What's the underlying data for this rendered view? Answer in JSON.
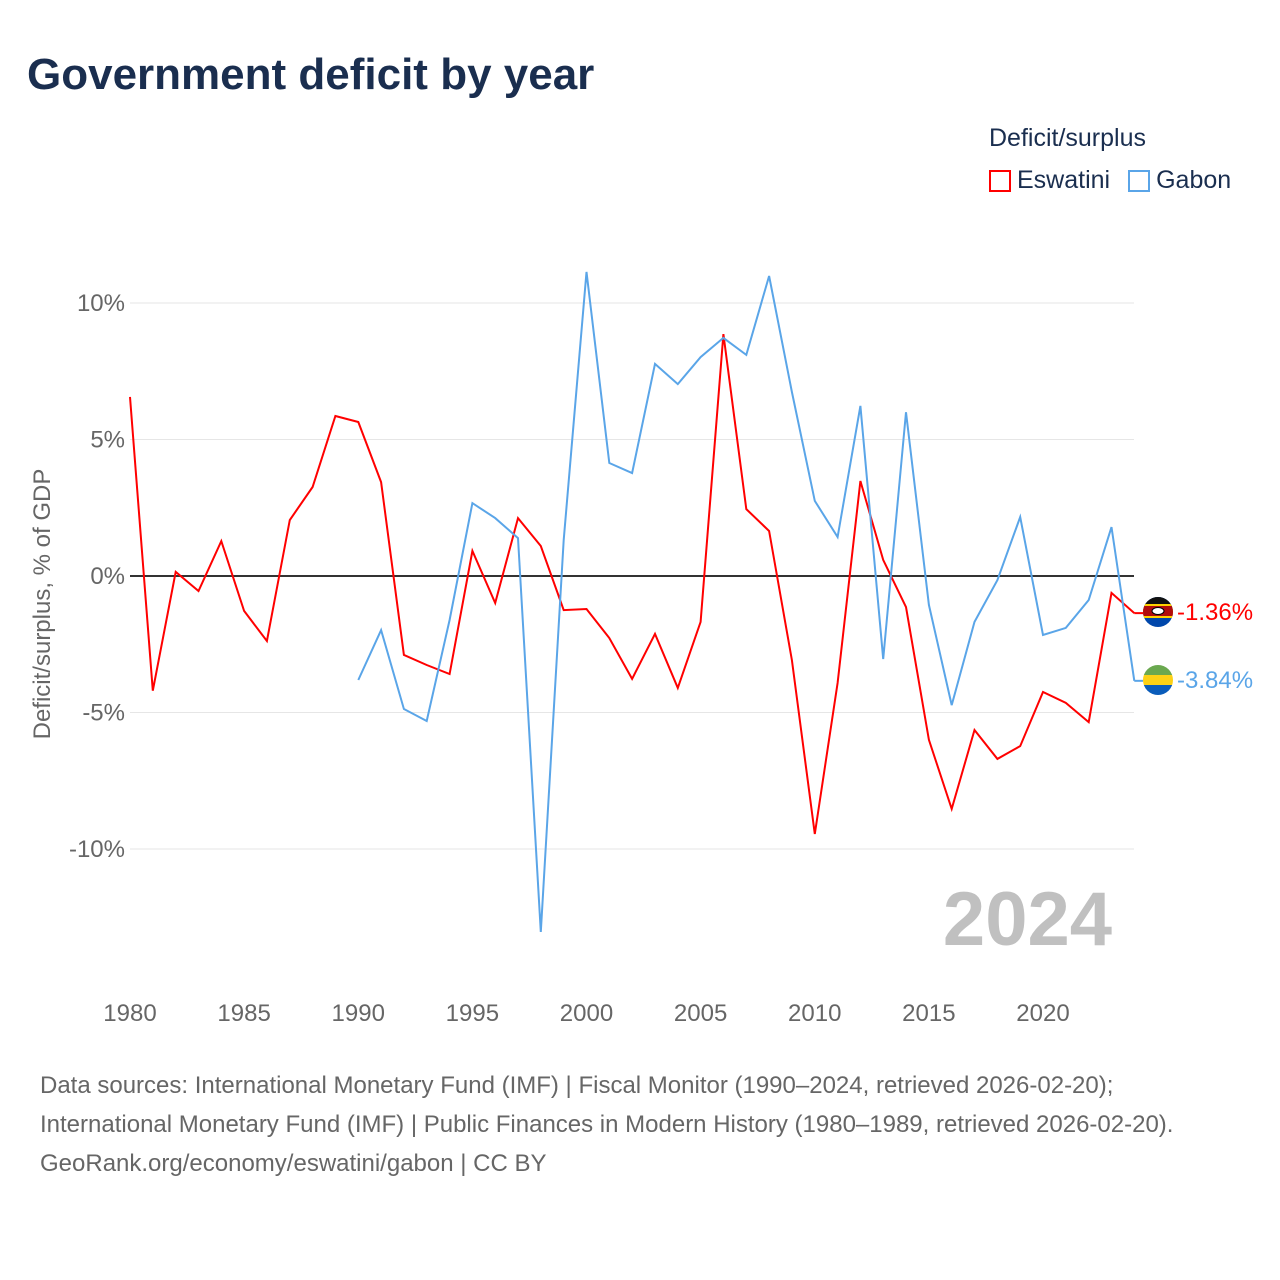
{
  "title": "Government deficit by year",
  "legend": {
    "title": "Deficit/surplus",
    "items": [
      {
        "label": "Eswatini",
        "color": "#ff0000"
      },
      {
        "label": "Gabon",
        "color": "#5aa5e8"
      }
    ]
  },
  "year_watermark": "2024",
  "source": {
    "line1": "Data sources: International Monetary Fund (IMF) | Fiscal Monitor (1990–2024, retrieved 2026-02-20);",
    "line2": "International Monetary Fund (IMF) | Public Finances in Modern History (1980–1989, retrieved 2026-02-20).",
    "line3": "GeoRank.org/economy/eswatini/gabon | CC BY"
  },
  "chart_data": {
    "type": "line",
    "title": "Government deficit by year",
    "xlabel": "",
    "ylabel": "Deficit/surplus, % of GDP",
    "xlim": [
      1980,
      2024
    ],
    "ylim": [
      -14,
      11.5
    ],
    "x_ticks": [
      1980,
      1985,
      1990,
      1995,
      2000,
      2005,
      2010,
      2015,
      2020
    ],
    "x_tick_labels": [
      "1980",
      "1985",
      "1990",
      "1995",
      "2000",
      "2005",
      "2010",
      "2015",
      "2020"
    ],
    "y_ticks": [
      10,
      5,
      0,
      -5,
      -10
    ],
    "y_tick_labels": [
      "10%",
      "5%",
      "0%",
      "-5%",
      "-10%"
    ],
    "grid": true,
    "legend_position": "top-right",
    "series": [
      {
        "name": "Eswatini",
        "color": "#ff0000",
        "end_label": "-1.36%",
        "x": [
          1980,
          1981,
          1982,
          1983,
          1984,
          1985,
          1986,
          1987,
          1988,
          1989,
          1990,
          1991,
          1992,
          1993,
          1994,
          1995,
          1996,
          1997,
          1998,
          1999,
          2000,
          2001,
          2002,
          2003,
          2004,
          2005,
          2006,
          2007,
          2008,
          2009,
          2010,
          2011,
          2012,
          2013,
          2014,
          2015,
          2016,
          2017,
          2018,
          2019,
          2020,
          2021,
          2022,
          2023,
          2024
        ],
        "values": [
          6.56,
          -4.2,
          0.15,
          -0.55,
          1.28,
          -1.28,
          -2.38,
          2.05,
          3.26,
          5.86,
          5.64,
          3.44,
          -2.89,
          -3.26,
          -3.59,
          0.92,
          -0.99,
          2.12,
          1.1,
          -1.25,
          -1.21,
          -2.27,
          -3.77,
          -2.12,
          -4.1,
          -1.68,
          8.86,
          2.45,
          1.65,
          -3.08,
          -9.45,
          -3.92,
          3.48,
          0.59,
          -1.14,
          -6.0,
          -8.53,
          -5.64,
          -6.7,
          -6.23,
          -4.25,
          -4.65,
          -5.35,
          -0.62,
          -1.36
        ]
      },
      {
        "name": "Gabon",
        "color": "#5aa5e8",
        "end_label": "-3.84%",
        "x": [
          1990,
          1991,
          1992,
          1993,
          1994,
          1995,
          1996,
          1997,
          1998,
          1999,
          2000,
          2001,
          2002,
          2003,
          2004,
          2005,
          2006,
          2007,
          2008,
          2009,
          2010,
          2011,
          2012,
          2013,
          2014,
          2015,
          2016,
          2017,
          2018,
          2019,
          2020,
          2021,
          2022,
          2023,
          2024
        ],
        "values": [
          -3.81,
          -1.98,
          -4.87,
          -5.31,
          -1.61,
          2.67,
          2.12,
          1.39,
          -13.04,
          1.32,
          11.14,
          4.14,
          3.77,
          7.77,
          7.03,
          8.02,
          8.72,
          8.1,
          10.99,
          6.74,
          2.75,
          1.43,
          6.23,
          -3.04,
          6.0,
          -1.06,
          -4.73,
          -1.68,
          -0.15,
          2.16,
          -2.16,
          -1.9,
          -0.88,
          1.79,
          -3.84
        ]
      }
    ]
  }
}
